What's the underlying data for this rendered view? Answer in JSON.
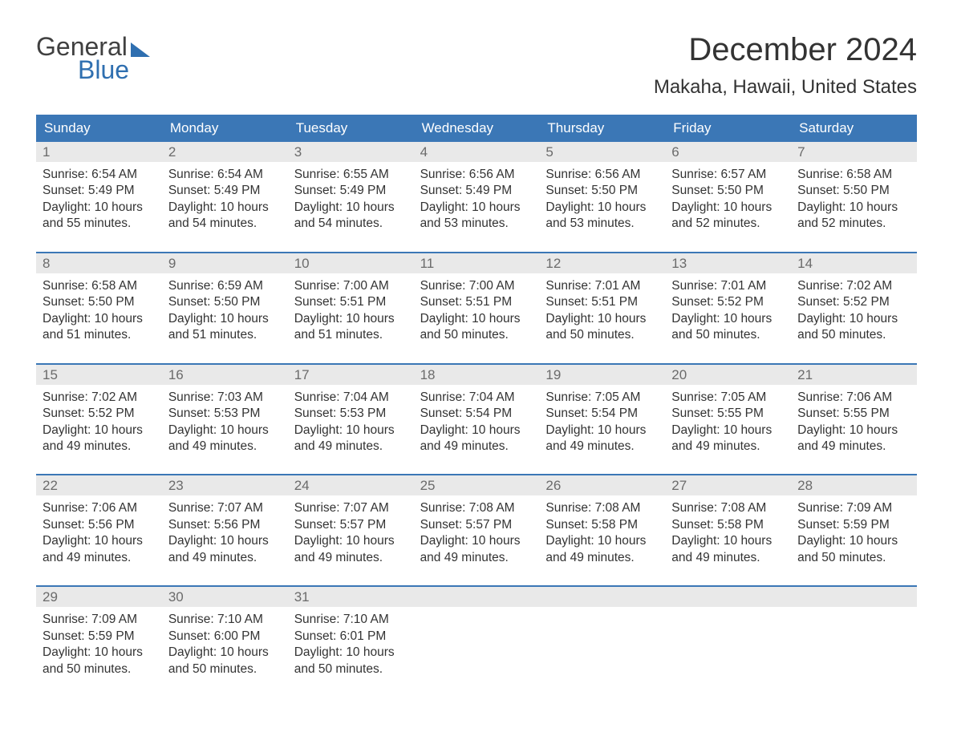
{
  "brand": {
    "word1": "General",
    "word2": "Blue",
    "color": "#2f6fb0"
  },
  "title": "December 2024",
  "location": "Makaha, Hawaii, United States",
  "header_bg": "#3b77b6",
  "daynum_bg": "#e9e9e9",
  "border_color": "#3b77b6",
  "text_color": "#333333",
  "daynum_color": "#6b6b6b",
  "background": "#ffffff",
  "dow": [
    "Sunday",
    "Monday",
    "Tuesday",
    "Wednesday",
    "Thursday",
    "Friday",
    "Saturday"
  ],
  "weeks": [
    [
      {
        "n": "1",
        "sunrise": "Sunrise: 6:54 AM",
        "sunset": "Sunset: 5:49 PM",
        "d1": "Daylight: 10 hours",
        "d2": "and 55 minutes."
      },
      {
        "n": "2",
        "sunrise": "Sunrise: 6:54 AM",
        "sunset": "Sunset: 5:49 PM",
        "d1": "Daylight: 10 hours",
        "d2": "and 54 minutes."
      },
      {
        "n": "3",
        "sunrise": "Sunrise: 6:55 AM",
        "sunset": "Sunset: 5:49 PM",
        "d1": "Daylight: 10 hours",
        "d2": "and 54 minutes."
      },
      {
        "n": "4",
        "sunrise": "Sunrise: 6:56 AM",
        "sunset": "Sunset: 5:49 PM",
        "d1": "Daylight: 10 hours",
        "d2": "and 53 minutes."
      },
      {
        "n": "5",
        "sunrise": "Sunrise: 6:56 AM",
        "sunset": "Sunset: 5:50 PM",
        "d1": "Daylight: 10 hours",
        "d2": "and 53 minutes."
      },
      {
        "n": "6",
        "sunrise": "Sunrise: 6:57 AM",
        "sunset": "Sunset: 5:50 PM",
        "d1": "Daylight: 10 hours",
        "d2": "and 52 minutes."
      },
      {
        "n": "7",
        "sunrise": "Sunrise: 6:58 AM",
        "sunset": "Sunset: 5:50 PM",
        "d1": "Daylight: 10 hours",
        "d2": "and 52 minutes."
      }
    ],
    [
      {
        "n": "8",
        "sunrise": "Sunrise: 6:58 AM",
        "sunset": "Sunset: 5:50 PM",
        "d1": "Daylight: 10 hours",
        "d2": "and 51 minutes."
      },
      {
        "n": "9",
        "sunrise": "Sunrise: 6:59 AM",
        "sunset": "Sunset: 5:50 PM",
        "d1": "Daylight: 10 hours",
        "d2": "and 51 minutes."
      },
      {
        "n": "10",
        "sunrise": "Sunrise: 7:00 AM",
        "sunset": "Sunset: 5:51 PM",
        "d1": "Daylight: 10 hours",
        "d2": "and 51 minutes."
      },
      {
        "n": "11",
        "sunrise": "Sunrise: 7:00 AM",
        "sunset": "Sunset: 5:51 PM",
        "d1": "Daylight: 10 hours",
        "d2": "and 50 minutes."
      },
      {
        "n": "12",
        "sunrise": "Sunrise: 7:01 AM",
        "sunset": "Sunset: 5:51 PM",
        "d1": "Daylight: 10 hours",
        "d2": "and 50 minutes."
      },
      {
        "n": "13",
        "sunrise": "Sunrise: 7:01 AM",
        "sunset": "Sunset: 5:52 PM",
        "d1": "Daylight: 10 hours",
        "d2": "and 50 minutes."
      },
      {
        "n": "14",
        "sunrise": "Sunrise: 7:02 AM",
        "sunset": "Sunset: 5:52 PM",
        "d1": "Daylight: 10 hours",
        "d2": "and 50 minutes."
      }
    ],
    [
      {
        "n": "15",
        "sunrise": "Sunrise: 7:02 AM",
        "sunset": "Sunset: 5:52 PM",
        "d1": "Daylight: 10 hours",
        "d2": "and 49 minutes."
      },
      {
        "n": "16",
        "sunrise": "Sunrise: 7:03 AM",
        "sunset": "Sunset: 5:53 PM",
        "d1": "Daylight: 10 hours",
        "d2": "and 49 minutes."
      },
      {
        "n": "17",
        "sunrise": "Sunrise: 7:04 AM",
        "sunset": "Sunset: 5:53 PM",
        "d1": "Daylight: 10 hours",
        "d2": "and 49 minutes."
      },
      {
        "n": "18",
        "sunrise": "Sunrise: 7:04 AM",
        "sunset": "Sunset: 5:54 PM",
        "d1": "Daylight: 10 hours",
        "d2": "and 49 minutes."
      },
      {
        "n": "19",
        "sunrise": "Sunrise: 7:05 AM",
        "sunset": "Sunset: 5:54 PM",
        "d1": "Daylight: 10 hours",
        "d2": "and 49 minutes."
      },
      {
        "n": "20",
        "sunrise": "Sunrise: 7:05 AM",
        "sunset": "Sunset: 5:55 PM",
        "d1": "Daylight: 10 hours",
        "d2": "and 49 minutes."
      },
      {
        "n": "21",
        "sunrise": "Sunrise: 7:06 AM",
        "sunset": "Sunset: 5:55 PM",
        "d1": "Daylight: 10 hours",
        "d2": "and 49 minutes."
      }
    ],
    [
      {
        "n": "22",
        "sunrise": "Sunrise: 7:06 AM",
        "sunset": "Sunset: 5:56 PM",
        "d1": "Daylight: 10 hours",
        "d2": "and 49 minutes."
      },
      {
        "n": "23",
        "sunrise": "Sunrise: 7:07 AM",
        "sunset": "Sunset: 5:56 PM",
        "d1": "Daylight: 10 hours",
        "d2": "and 49 minutes."
      },
      {
        "n": "24",
        "sunrise": "Sunrise: 7:07 AM",
        "sunset": "Sunset: 5:57 PM",
        "d1": "Daylight: 10 hours",
        "d2": "and 49 minutes."
      },
      {
        "n": "25",
        "sunrise": "Sunrise: 7:08 AM",
        "sunset": "Sunset: 5:57 PM",
        "d1": "Daylight: 10 hours",
        "d2": "and 49 minutes."
      },
      {
        "n": "26",
        "sunrise": "Sunrise: 7:08 AM",
        "sunset": "Sunset: 5:58 PM",
        "d1": "Daylight: 10 hours",
        "d2": "and 49 minutes."
      },
      {
        "n": "27",
        "sunrise": "Sunrise: 7:08 AM",
        "sunset": "Sunset: 5:58 PM",
        "d1": "Daylight: 10 hours",
        "d2": "and 49 minutes."
      },
      {
        "n": "28",
        "sunrise": "Sunrise: 7:09 AM",
        "sunset": "Sunset: 5:59 PM",
        "d1": "Daylight: 10 hours",
        "d2": "and 50 minutes."
      }
    ],
    [
      {
        "n": "29",
        "sunrise": "Sunrise: 7:09 AM",
        "sunset": "Sunset: 5:59 PM",
        "d1": "Daylight: 10 hours",
        "d2": "and 50 minutes."
      },
      {
        "n": "30",
        "sunrise": "Sunrise: 7:10 AM",
        "sunset": "Sunset: 6:00 PM",
        "d1": "Daylight: 10 hours",
        "d2": "and 50 minutes."
      },
      {
        "n": "31",
        "sunrise": "Sunrise: 7:10 AM",
        "sunset": "Sunset: 6:01 PM",
        "d1": "Daylight: 10 hours",
        "d2": "and 50 minutes."
      },
      null,
      null,
      null,
      null
    ]
  ]
}
